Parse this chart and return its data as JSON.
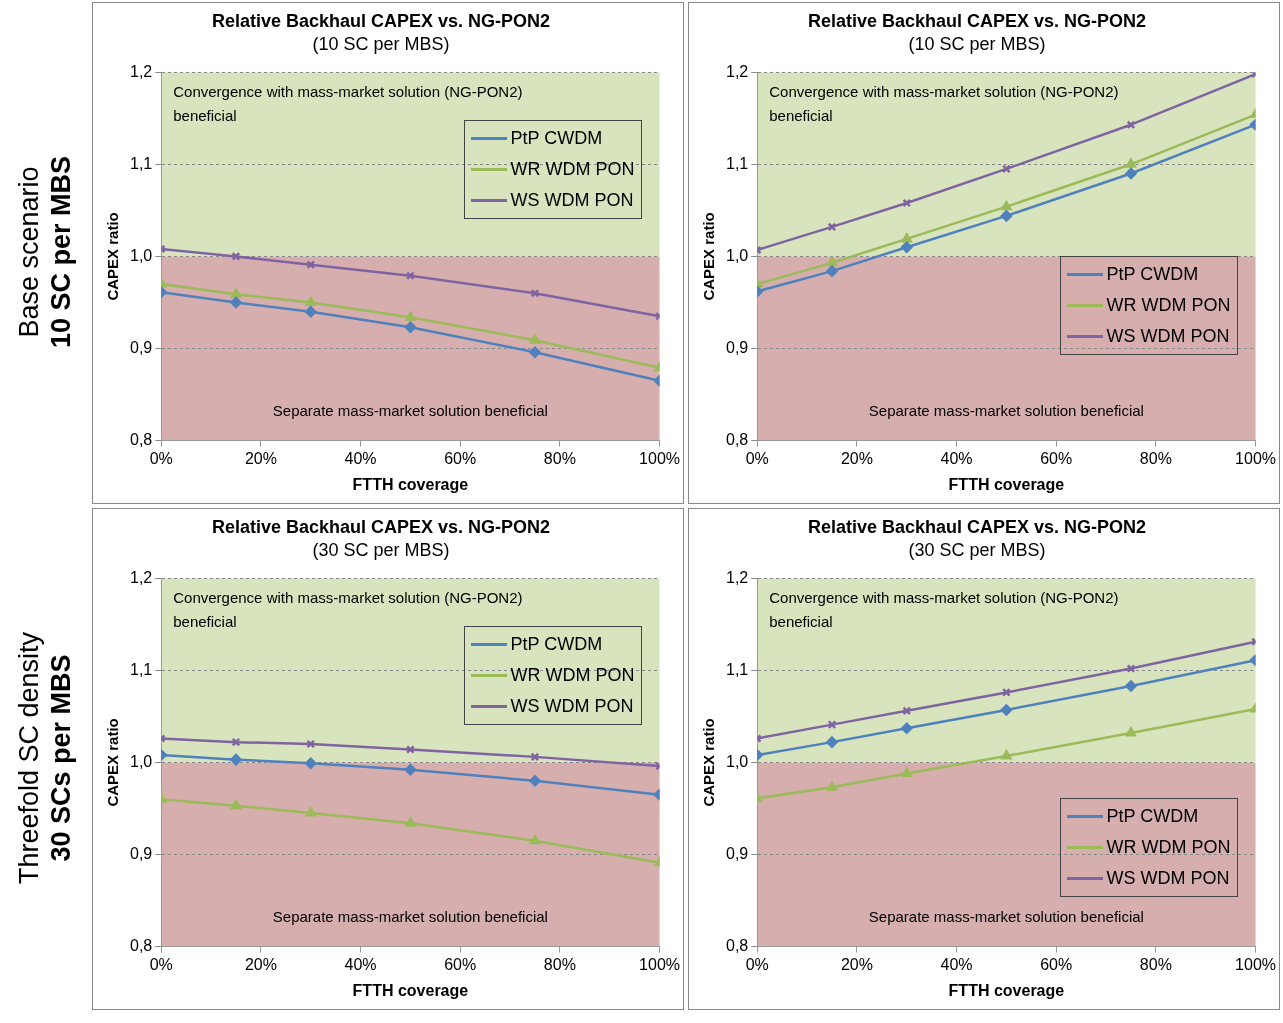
{
  "chart_data": [
    {
      "type": "line",
      "title": "Relative Backhaul CAPEX vs. NG-PON2",
      "subtitle": "(10 SC per MBS)",
      "xlabel": "FTTH coverage",
      "ylabel": "CAPEX ratio",
      "annotations": [
        "Base scenario",
        "10 SC per MBS"
      ],
      "x": [
        0,
        15,
        30,
        50,
        75,
        100
      ],
      "xlim": [
        0,
        100
      ],
      "xticks": [
        {
          "value": 0,
          "label": "0%"
        },
        {
          "value": 20,
          "label": "20%"
        },
        {
          "value": 40,
          "label": "40%"
        },
        {
          "value": 60,
          "label": "60%"
        },
        {
          "value": 80,
          "label": "80%"
        },
        {
          "value": 100,
          "label": "100%"
        }
      ],
      "ylim": [
        0.8,
        1.2
      ],
      "yticks": [
        {
          "value": 0.8,
          "label": "0,8"
        },
        {
          "value": 0.9,
          "label": "0,9"
        },
        {
          "value": 1.0,
          "label": "1,0"
        },
        {
          "value": 1.1,
          "label": "1,1"
        },
        {
          "value": 1.2,
          "label": "1,2"
        }
      ],
      "grid": "y",
      "legend": "top right",
      "bands": [
        {
          "axis": "y",
          "from": 1.0,
          "to": 1.2,
          "label": "Convergence with mass-market solution (NG-PON2) beneficial",
          "color": "#d7e4bd"
        },
        {
          "axis": "y",
          "from": 0.8,
          "to": 1.0,
          "label": "Separate mass-market solution beneficial",
          "color": "#d6aeae"
        }
      ],
      "series": [
        {
          "name": "PtP CWDM",
          "color": "#4f81bd",
          "marker": "diamond",
          "values": [
            0.961,
            0.95,
            0.94,
            0.923,
            0.896,
            0.865
          ]
        },
        {
          "name": "WR WDM PON",
          "color": "#9bbb59",
          "marker": "triangle",
          "values": [
            0.97,
            0.959,
            0.95,
            0.934,
            0.909,
            0.879
          ]
        },
        {
          "name": "WS WDM PON",
          "color": "#8064a2",
          "marker": "cross",
          "values": [
            1.008,
            1.0,
            0.991,
            0.979,
            0.96,
            0.935
          ]
        }
      ]
    },
    {
      "type": "line",
      "title": "Relative Backhaul CAPEX vs. NG-PON2",
      "subtitle": "(10 SC per MBS)",
      "xlabel": "FTTH coverage",
      "ylabel": "CAPEX ratio",
      "x": [
        0,
        15,
        30,
        50,
        75,
        100
      ],
      "xlim": [
        0,
        100
      ],
      "xticks": [
        {
          "value": 0,
          "label": "0%"
        },
        {
          "value": 20,
          "label": "20%"
        },
        {
          "value": 40,
          "label": "40%"
        },
        {
          "value": 60,
          "label": "60%"
        },
        {
          "value": 80,
          "label": "80%"
        },
        {
          "value": 100,
          "label": "100%"
        }
      ],
      "ylim": [
        0.8,
        1.2
      ],
      "yticks": [
        {
          "value": 0.8,
          "label": "0,8"
        },
        {
          "value": 0.9,
          "label": "0,9"
        },
        {
          "value": 1.0,
          "label": "1,0"
        },
        {
          "value": 1.1,
          "label": "1,1"
        },
        {
          "value": 1.2,
          "label": "1,2"
        }
      ],
      "grid": "y",
      "legend": "right",
      "bands": [
        {
          "axis": "y",
          "from": 1.0,
          "to": 1.2,
          "label": "Convergence with mass-market solution (NG-PON2) beneficial",
          "color": "#d7e4bd"
        },
        {
          "axis": "y",
          "from": 0.8,
          "to": 1.0,
          "label": "Separate mass-market solution beneficial",
          "color": "#d6aeae"
        }
      ],
      "series": [
        {
          "name": "PtP CWDM",
          "color": "#4f81bd",
          "marker": "diamond",
          "values": [
            0.962,
            0.984,
            1.01,
            1.044,
            1.09,
            1.143
          ]
        },
        {
          "name": "WR WDM PON",
          "color": "#9bbb59",
          "marker": "triangle",
          "values": [
            0.97,
            0.993,
            1.019,
            1.054,
            1.1,
            1.154
          ]
        },
        {
          "name": "WS WDM PON",
          "color": "#8064a2",
          "marker": "cross",
          "values": [
            1.007,
            1.032,
            1.058,
            1.095,
            1.143,
            1.198
          ]
        }
      ]
    },
    {
      "type": "line",
      "title": "Relative Backhaul CAPEX vs. NG-PON2",
      "subtitle": "(30 SC per MBS)",
      "xlabel": "FTTH coverage",
      "ylabel": "CAPEX ratio",
      "annotations": [
        "Threefold SC density",
        "30 SCs per MBS"
      ],
      "x": [
        0,
        15,
        30,
        50,
        75,
        100
      ],
      "xlim": [
        0,
        100
      ],
      "xticks": [
        {
          "value": 0,
          "label": "0%"
        },
        {
          "value": 20,
          "label": "20%"
        },
        {
          "value": 40,
          "label": "40%"
        },
        {
          "value": 60,
          "label": "60%"
        },
        {
          "value": 80,
          "label": "80%"
        },
        {
          "value": 100,
          "label": "100%"
        }
      ],
      "ylim": [
        0.8,
        1.2
      ],
      "yticks": [
        {
          "value": 0.8,
          "label": "0,8"
        },
        {
          "value": 0.9,
          "label": "0,9"
        },
        {
          "value": 1.0,
          "label": "1,0"
        },
        {
          "value": 1.1,
          "label": "1,1"
        },
        {
          "value": 1.2,
          "label": "1,2"
        }
      ],
      "grid": "y",
      "legend": "top right",
      "bands": [
        {
          "axis": "y",
          "from": 1.0,
          "to": 1.2,
          "label": "Convergence with mass-market solution (NG-PON2) beneficial",
          "color": "#d7e4bd"
        },
        {
          "axis": "y",
          "from": 0.8,
          "to": 1.0,
          "label": "Separate mass-market solution beneficial",
          "color": "#d6aeae"
        }
      ],
      "series": [
        {
          "name": "PtP CWDM",
          "color": "#4f81bd",
          "marker": "diamond",
          "values": [
            1.008,
            1.003,
            0.999,
            0.992,
            0.98,
            0.965
          ]
        },
        {
          "name": "WR WDM PON",
          "color": "#9bbb59",
          "marker": "triangle",
          "values": [
            0.96,
            0.953,
            0.945,
            0.934,
            0.915,
            0.891
          ]
        },
        {
          "name": "WS WDM PON",
          "color": "#8064a2",
          "marker": "cross",
          "values": [
            1.026,
            1.022,
            1.02,
            1.014,
            1.006,
            0.996
          ]
        }
      ]
    },
    {
      "type": "line",
      "title": "Relative Backhaul CAPEX vs. NG-PON2",
      "subtitle": "(30 SC per MBS)",
      "xlabel": "FTTH coverage",
      "ylabel": "CAPEX ratio",
      "x": [
        0,
        15,
        30,
        50,
        75,
        100
      ],
      "xlim": [
        0,
        100
      ],
      "xticks": [
        {
          "value": 0,
          "label": "0%"
        },
        {
          "value": 20,
          "label": "20%"
        },
        {
          "value": 40,
          "label": "40%"
        },
        {
          "value": 60,
          "label": "60%"
        },
        {
          "value": 80,
          "label": "80%"
        },
        {
          "value": 100,
          "label": "100%"
        }
      ],
      "ylim": [
        0.8,
        1.2
      ],
      "yticks": [
        {
          "value": 0.8,
          "label": "0,8"
        },
        {
          "value": 0.9,
          "label": "0,9"
        },
        {
          "value": 1.0,
          "label": "1,0"
        },
        {
          "value": 1.1,
          "label": "1,1"
        },
        {
          "value": 1.2,
          "label": "1,2"
        }
      ],
      "grid": "y",
      "legend": "bottom right",
      "bands": [
        {
          "axis": "y",
          "from": 1.0,
          "to": 1.2,
          "label": "Convergence with mass-market solution (NG-PON2) beneficial",
          "color": "#d7e4bd"
        },
        {
          "axis": "y",
          "from": 0.8,
          "to": 1.0,
          "label": "Separate mass-market solution beneficial",
          "color": "#d6aeae"
        }
      ],
      "series": [
        {
          "name": "PtP CWDM",
          "color": "#4f81bd",
          "marker": "diamond",
          "values": [
            1.008,
            1.022,
            1.037,
            1.057,
            1.083,
            1.111
          ]
        },
        {
          "name": "WR WDM PON",
          "color": "#9bbb59",
          "marker": "triangle",
          "values": [
            0.961,
            0.973,
            0.988,
            1.007,
            1.032,
            1.058
          ]
        },
        {
          "name": "WS WDM PON",
          "color": "#8064a2",
          "marker": "cross",
          "values": [
            1.026,
            1.041,
            1.056,
            1.076,
            1.102,
            1.131
          ]
        }
      ]
    }
  ]
}
